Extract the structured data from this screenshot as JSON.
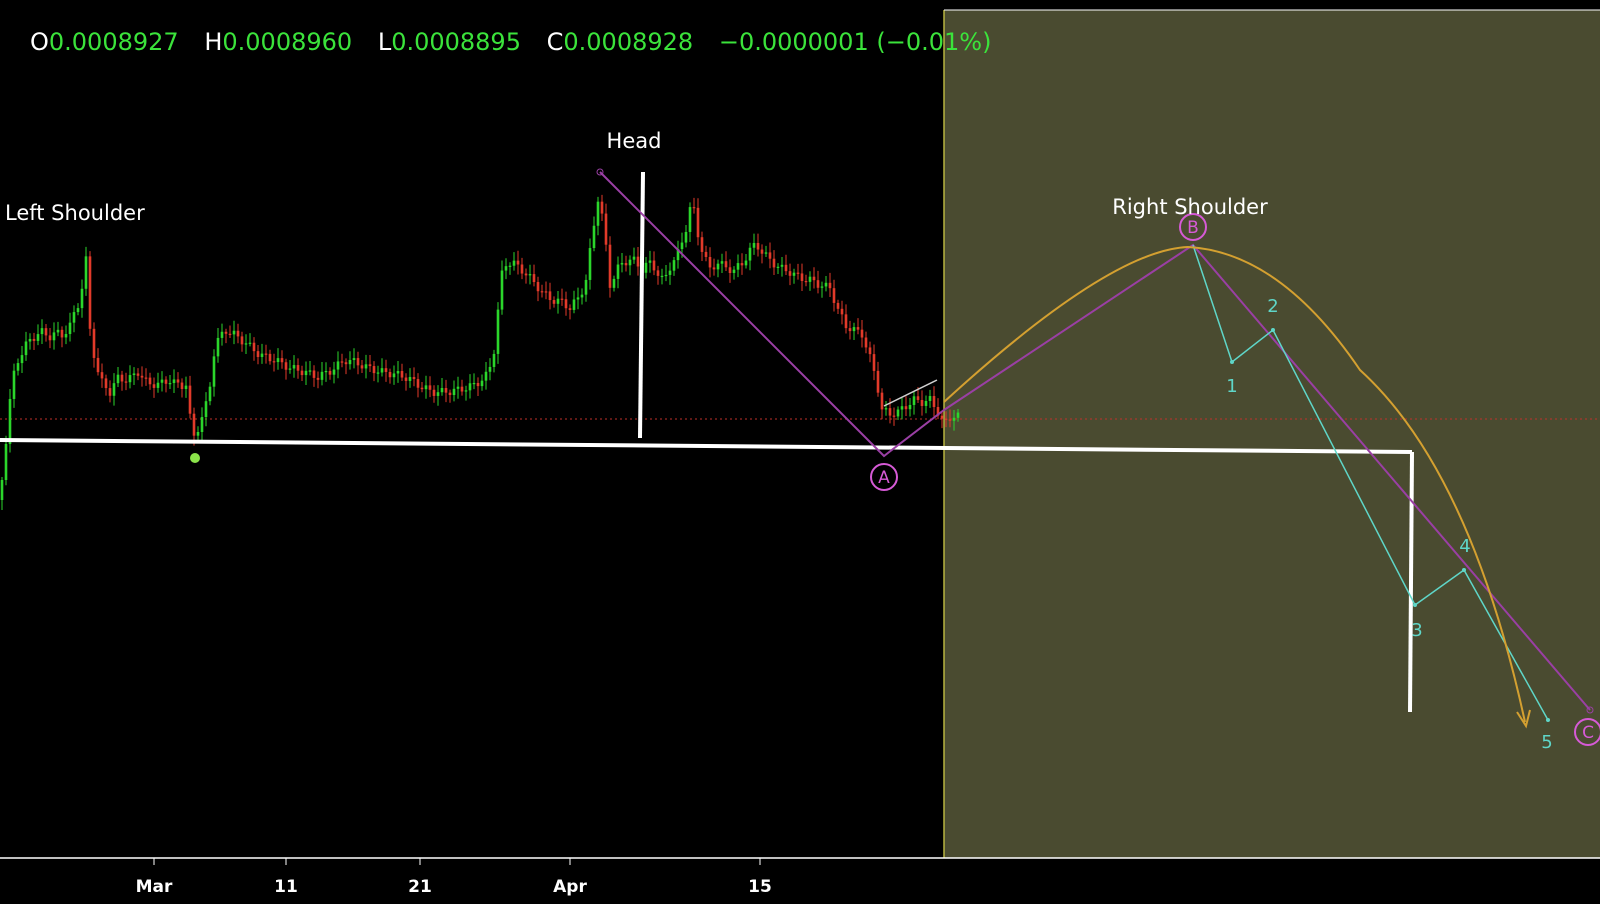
{
  "ohlc": {
    "open_label": "O",
    "open": "0.0008927",
    "high_label": "H",
    "high": "0.0008960",
    "low_label": "L",
    "low": "0.0008895",
    "close_label": "C",
    "close": "0.0008928",
    "change": "−0.0000001 (−0.01%)"
  },
  "colors": {
    "background": "#000000",
    "projection_zone": "#4a4b30",
    "up_candle": "#2bd62b",
    "down_candle": "#e23a2a",
    "neckline": "#ffffff",
    "abc_line": "#9a3fa4",
    "abc_label": "#d65ad6",
    "wave_line": "#5fd6c8",
    "arc": "#d4a030",
    "price_line": "#c0302a",
    "text_green": "#3be33b"
  },
  "chart_data": {
    "type": "candlestick",
    "x_ticks": [
      "Mar",
      "11",
      "21",
      "Apr",
      "15"
    ],
    "current_price": 0.0008928,
    "annotations": [
      "Left Shoulder",
      "Head",
      "Right Shoulder"
    ],
    "abc_points": [
      "A",
      "B",
      "C"
    ],
    "wave_labels": [
      "1",
      "2",
      "3",
      "4",
      "5"
    ],
    "grid": false
  }
}
